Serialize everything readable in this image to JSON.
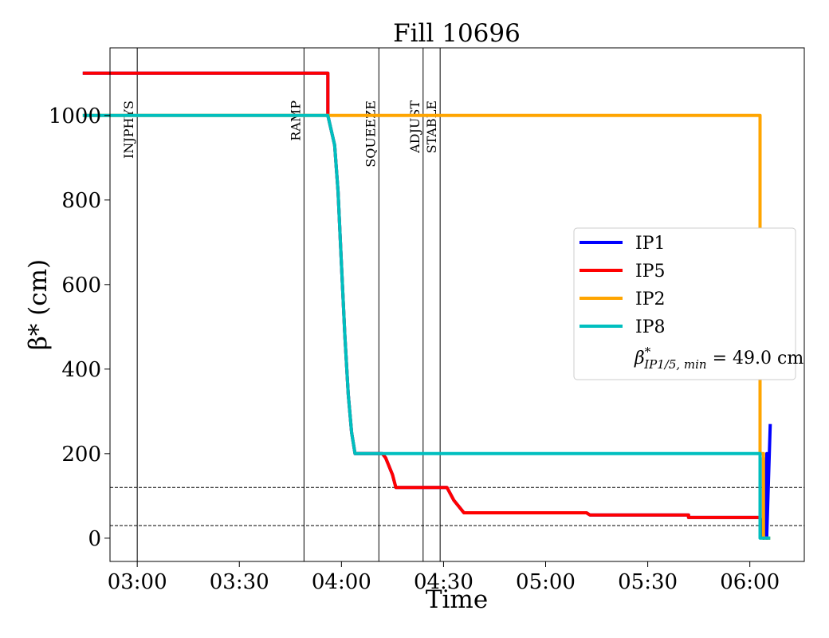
{
  "chart_data": {
    "type": "line",
    "title": "Fill 10696",
    "xlabel": "Time",
    "ylabel": "β* (cm)",
    "xlim": [
      "02:52",
      "06:16"
    ],
    "ylim": [
      -55,
      1160
    ],
    "xticks": [
      "03:00",
      "03:30",
      "04:00",
      "04:30",
      "05:00",
      "05:30",
      "06:00"
    ],
    "yticks": [
      0,
      200,
      400,
      600,
      800,
      1000
    ],
    "grid": false,
    "legend_position": "center-right",
    "vlines": [
      {
        "label": "INJPHYS",
        "time": "03:00"
      },
      {
        "label": "RAMP",
        "time": "03:49"
      },
      {
        "label": "SQUEEZE",
        "time": "04:11"
      },
      {
        "label": "ADJUST",
        "time": "04:24"
      },
      {
        "label": "STABLE",
        "time": "04:29"
      }
    ],
    "hlines": [
      120,
      30
    ],
    "series": [
      {
        "name": "IP1",
        "color": "#0000ff",
        "points": [
          [
            "02:44",
            1100
          ],
          [
            "03:56",
            1100
          ],
          [
            "03:56",
            1000
          ],
          [
            "03:58",
            930
          ],
          [
            "03:59",
            820
          ],
          [
            "04:00",
            650
          ],
          [
            "04:01",
            480
          ],
          [
            "04:02",
            340
          ],
          [
            "04:03",
            250
          ],
          [
            "04:04",
            200
          ],
          [
            "04:12",
            200
          ],
          [
            "04:13",
            190
          ],
          [
            "04:15",
            150
          ],
          [
            "04:16",
            120
          ],
          [
            "04:31",
            120
          ],
          [
            "04:33",
            90
          ],
          [
            "04:36",
            60
          ],
          [
            "05:12",
            60
          ],
          [
            "05:13",
            55
          ],
          [
            "05:42",
            55
          ],
          [
            "05:42",
            49
          ],
          [
            "06:03",
            49
          ],
          [
            "06:04",
            0
          ],
          [
            "06:04",
            190
          ],
          [
            "06:05",
            0
          ],
          [
            "06:05",
            200
          ],
          [
            "06:05",
            10
          ],
          [
            "06:06",
            270
          ]
        ]
      },
      {
        "name": "IP5",
        "color": "#ff0000",
        "points": [
          [
            "02:44",
            1100
          ],
          [
            "03:56",
            1100
          ],
          [
            "03:56",
            1000
          ],
          [
            "03:58",
            930
          ],
          [
            "03:59",
            820
          ],
          [
            "04:00",
            650
          ],
          [
            "04:01",
            480
          ],
          [
            "04:02",
            340
          ],
          [
            "04:03",
            250
          ],
          [
            "04:04",
            200
          ],
          [
            "04:12",
            200
          ],
          [
            "04:13",
            190
          ],
          [
            "04:15",
            150
          ],
          [
            "04:16",
            120
          ],
          [
            "04:31",
            120
          ],
          [
            "04:33",
            90
          ],
          [
            "04:36",
            60
          ],
          [
            "05:12",
            60
          ],
          [
            "05:13",
            55
          ],
          [
            "05:42",
            55
          ],
          [
            "05:42",
            49
          ],
          [
            "06:03",
            49
          ]
        ]
      },
      {
        "name": "IP2",
        "color": "#ffa500",
        "points": [
          [
            "02:44",
            1000
          ],
          [
            "06:03",
            1000
          ],
          [
            "06:03",
            200
          ],
          [
            "06:04",
            200
          ],
          [
            "06:04",
            0
          ],
          [
            "06:06",
            0
          ]
        ]
      },
      {
        "name": "IP8",
        "color": "#00bfbf",
        "points": [
          [
            "02:44",
            1000
          ],
          [
            "03:56",
            1000
          ],
          [
            "03:58",
            930
          ],
          [
            "03:59",
            820
          ],
          [
            "04:00",
            650
          ],
          [
            "04:01",
            480
          ],
          [
            "04:02",
            340
          ],
          [
            "04:03",
            250
          ],
          [
            "04:04",
            200
          ],
          [
            "06:03",
            200
          ],
          [
            "06:03",
            0
          ],
          [
            "06:06",
            0
          ]
        ]
      }
    ],
    "legend_note": {
      "prefix": "β",
      "sup": "*",
      "sub": "IP1/5, min",
      "value": " = 49.0 cm"
    }
  }
}
